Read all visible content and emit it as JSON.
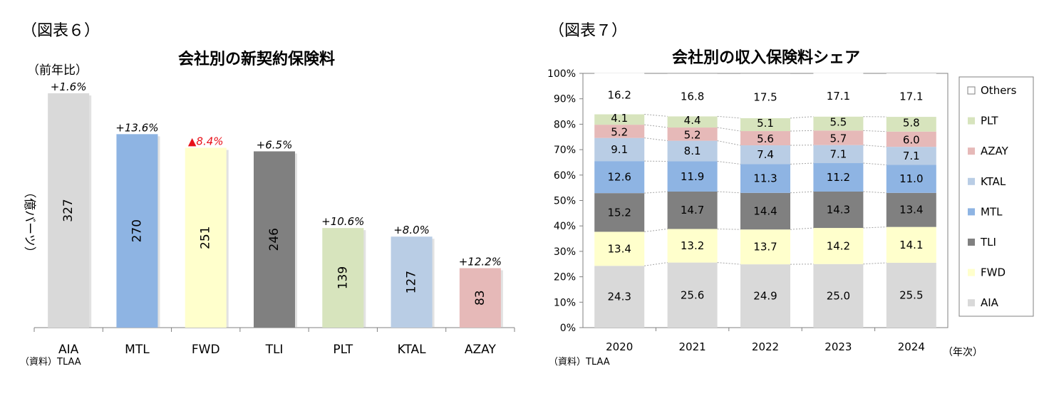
{
  "figure6": {
    "label": "（図表６）",
    "source": "（資料）TLAA",
    "chart_data": {
      "type": "bar",
      "title": "会社別の新契約保険料",
      "ylabel": "（億バーツ）",
      "growth_header": "（前年比）",
      "categories": [
        "AIA",
        "MTL",
        "FWD",
        "TLI",
        "PLT",
        "KTAL",
        "AZAY"
      ],
      "values": [
        327,
        270,
        251,
        246,
        139,
        127,
        83
      ],
      "value_labels": [
        "327",
        "270",
        "251",
        "246",
        "139",
        "127",
        "83"
      ],
      "growth": [
        "+1.6%",
        "+13.6%",
        "▲8.4%",
        "+6.5%",
        "+10.6%",
        "+8.0%",
        "+12.2%"
      ],
      "growth_negative": [
        false,
        false,
        true,
        false,
        false,
        false,
        false
      ],
      "colors": [
        "#d9d9d9",
        "#8eb4e3",
        "#ffffcc",
        "#808080",
        "#d7e4bd",
        "#b9cde5",
        "#e6b9b8"
      ],
      "negative_color": "#e8111a",
      "ylim": [
        0,
        327
      ]
    }
  },
  "figure7": {
    "label": "（図表７）",
    "source": "（資料）TLAA",
    "xunit": "（年次）",
    "chart_data": {
      "type": "bar",
      "stacked": true,
      "title": "会社別の収入保険料シェア",
      "categories": [
        "2020",
        "2021",
        "2022",
        "2023",
        "2024"
      ],
      "yticks": [
        "0%",
        "10%",
        "20%",
        "30%",
        "40%",
        "50%",
        "60%",
        "70%",
        "80%",
        "90%",
        "100%"
      ],
      "ylim": [
        0,
        100
      ],
      "series": [
        {
          "name": "AIA",
          "color": "#d9d9d9",
          "values": [
            24.3,
            25.6,
            24.9,
            25.0,
            25.5
          ],
          "labels": [
            "24.3",
            "25.6",
            "24.9",
            "25.0",
            "25.5"
          ]
        },
        {
          "name": "FWD",
          "color": "#ffffcc",
          "values": [
            13.4,
            13.2,
            13.7,
            14.2,
            14.1
          ],
          "labels": [
            "13.4",
            "13.2",
            "13.7",
            "14.2",
            "14.1"
          ]
        },
        {
          "name": "TLI",
          "color": "#808080",
          "values": [
            15.2,
            14.7,
            14.4,
            14.3,
            13.4
          ],
          "labels": [
            "15.2",
            "14.7",
            "14.4",
            "14.3",
            "13.4"
          ]
        },
        {
          "name": "MTL",
          "color": "#8eb4e3",
          "values": [
            12.6,
            11.9,
            11.3,
            11.2,
            11.0
          ],
          "labels": [
            "12.6",
            "11.9",
            "11.3",
            "11.2",
            "11.0"
          ]
        },
        {
          "name": "KTAL",
          "color": "#b9cde5",
          "values": [
            9.1,
            8.1,
            7.4,
            7.1,
            7.1
          ],
          "labels": [
            "9.1",
            "8.1",
            "7.4",
            "7.1",
            "7.1"
          ]
        },
        {
          "name": "AZAY",
          "color": "#e6b9b8",
          "values": [
            5.2,
            5.2,
            5.6,
            5.7,
            6.0
          ],
          "labels": [
            "5.2",
            "5.2",
            "5.6",
            "5.7",
            "6.0"
          ]
        },
        {
          "name": "PLT",
          "color": "#d7e4bd",
          "values": [
            4.1,
            4.4,
            5.1,
            5.5,
            5.8
          ],
          "labels": [
            "4.1",
            "4.4",
            "5.1",
            "5.5",
            "5.8"
          ]
        },
        {
          "name": "Others",
          "color": "#ffffff",
          "values": [
            16.2,
            16.8,
            17.5,
            17.1,
            17.1
          ],
          "labels": [
            "16.2",
            "16.8",
            "17.5",
            "17.1",
            "17.1"
          ]
        }
      ],
      "legend_order": [
        "Others",
        "PLT",
        "AZAY",
        "KTAL",
        "MTL",
        "TLI",
        "FWD",
        "AIA"
      ],
      "legend_position": "right"
    }
  }
}
